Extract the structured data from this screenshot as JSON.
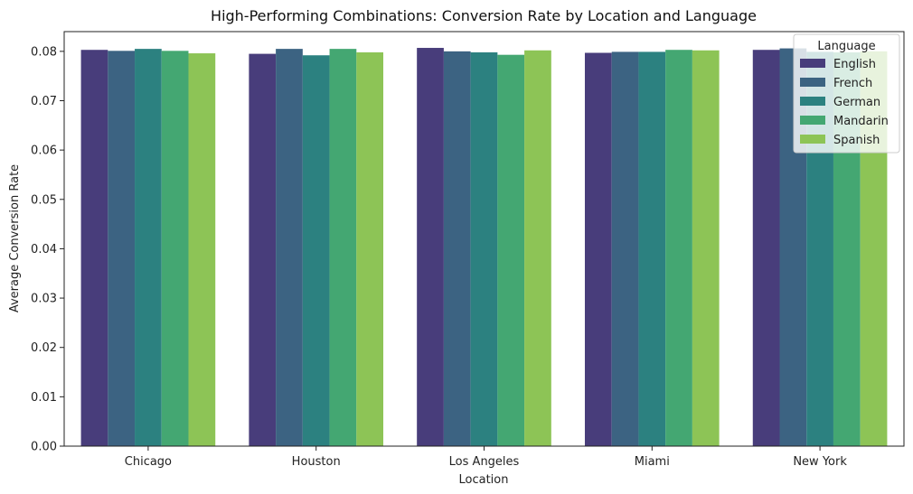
{
  "chart_data": {
    "type": "bar",
    "title": "High-Performing Combinations: Conversion Rate by Location and Language",
    "xlabel": "Location",
    "ylabel": "Average Conversion Rate",
    "categories": [
      "Chicago",
      "Houston",
      "Los Angeles",
      "Miami",
      "New York"
    ],
    "ylim": [
      0,
      0.084
    ],
    "yticks": [
      "0.00",
      "0.01",
      "0.02",
      "0.03",
      "0.04",
      "0.05",
      "0.06",
      "0.07",
      "0.08"
    ],
    "grid": false,
    "legend": {
      "title": "Language",
      "placement": "top-right"
    },
    "series": [
      {
        "name": "English",
        "color": "#483d7b",
        "values": [
          0.0803,
          0.0795,
          0.0807,
          0.0797,
          0.0803
        ]
      },
      {
        "name": "French",
        "color": "#3c6382",
        "values": [
          0.0801,
          0.0805,
          0.08,
          0.0799,
          0.0806
        ]
      },
      {
        "name": "German",
        "color": "#2c8180",
        "values": [
          0.0805,
          0.0792,
          0.0798,
          0.0799,
          0.0799
        ]
      },
      {
        "name": "Mandarin",
        "color": "#44a772",
        "values": [
          0.0801,
          0.0805,
          0.0793,
          0.0803,
          0.0798
        ]
      },
      {
        "name": "Spanish",
        "color": "#8dc456",
        "values": [
          0.0796,
          0.0798,
          0.0802,
          0.0802,
          0.08
        ]
      }
    ]
  }
}
